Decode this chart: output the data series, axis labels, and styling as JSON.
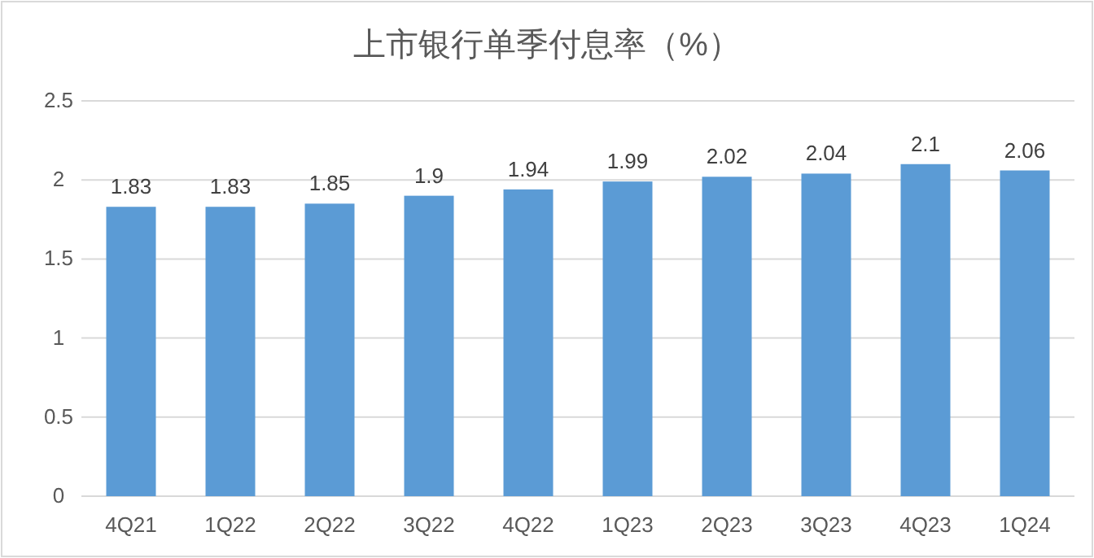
{
  "chart_data": {
    "type": "bar",
    "title": "上市银行单季付息率（%）",
    "categories": [
      "4Q21",
      "1Q22",
      "2Q22",
      "3Q22",
      "4Q22",
      "1Q23",
      "2Q23",
      "3Q23",
      "4Q23",
      "1Q24"
    ],
    "values": [
      1.83,
      1.83,
      1.85,
      1.9,
      1.94,
      1.99,
      2.02,
      2.04,
      2.1,
      2.06
    ],
    "color": "#5b9bd5",
    "ylim": [
      0,
      2.5
    ],
    "yticks": [
      0,
      0.5,
      1,
      1.5,
      2,
      2.5
    ],
    "grid": "y",
    "data_labels": true
  }
}
